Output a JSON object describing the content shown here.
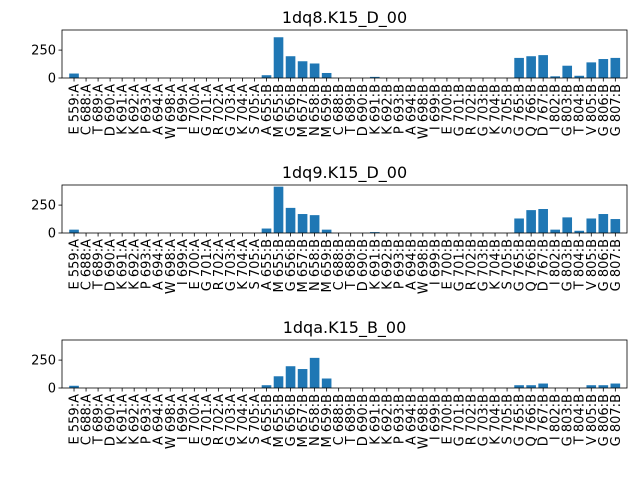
{
  "chart_data": [
    {
      "type": "bar",
      "title": "1dq8.K15_D_00",
      "categories": [
        "E 559:A",
        "C 688:A",
        "T 689:A",
        "D 690:A",
        "K 691:A",
        "K 692:A",
        "P 693:A",
        "A 694:A",
        "W 698:A",
        "I 699:A",
        "E 700:A",
        "G 701:A",
        "R 702:A",
        "G 703:A",
        "K 704:A",
        "S 705:A",
        "A 655:B",
        "M 655:B",
        "G 656:B",
        "M 657:B",
        "N 658:B",
        "M 659:B",
        "C 688:B",
        "T 689:B",
        "D 690:B",
        "K 691:B",
        "K 692:B",
        "P 693:B",
        "A 694:B",
        "W 698:B",
        "I 699:B",
        "E 700:B",
        "G 701:B",
        "R 702:B",
        "G 703:B",
        "K 704:B",
        "S 705:B",
        "G 765:B",
        "Q 766:B",
        "D 767:B",
        "I 802:B",
        "G 803:B",
        "T 804:B",
        "V 805:B",
        "G 806:B",
        "G 807:B"
      ],
      "values": [
        40,
        0,
        0,
        0,
        0,
        0,
        0,
        0,
        0,
        0,
        0,
        0,
        0,
        0,
        0,
        0,
        25,
        365,
        195,
        150,
        130,
        45,
        0,
        0,
        0,
        10,
        0,
        0,
        0,
        0,
        0,
        0,
        0,
        0,
        0,
        0,
        0,
        180,
        195,
        205,
        15,
        110,
        20,
        140,
        170,
        180
      ],
      "yticks": [
        0,
        250
      ],
      "ylim": [
        0,
        430
      ],
      "color": "#1f77b4"
    },
    {
      "type": "bar",
      "title": "1dq9.K15_D_00",
      "categories": [
        "E 559:A",
        "C 688:A",
        "T 689:A",
        "D 690:A",
        "K 691:A",
        "K 692:A",
        "P 693:A",
        "A 694:A",
        "W 698:A",
        "I 699:A",
        "E 700:A",
        "G 701:A",
        "R 702:A",
        "G 703:A",
        "K 704:A",
        "S 705:A",
        "A 655:B",
        "M 655:B",
        "G 656:B",
        "M 657:B",
        "N 658:B",
        "M 659:B",
        "C 688:B",
        "T 689:B",
        "D 690:B",
        "K 691:B",
        "K 692:B",
        "P 693:B",
        "A 694:B",
        "W 698:B",
        "I 699:B",
        "E 700:B",
        "G 701:B",
        "R 702:B",
        "G 703:B",
        "K 704:B",
        "S 705:B",
        "G 765:B",
        "Q 766:B",
        "D 767:B",
        "I 802:B",
        "G 803:B",
        "T 804:B",
        "V 805:B",
        "G 806:B",
        "G 807:B"
      ],
      "values": [
        30,
        0,
        0,
        0,
        0,
        0,
        0,
        0,
        0,
        0,
        0,
        0,
        0,
        0,
        0,
        0,
        40,
        415,
        225,
        170,
        160,
        30,
        0,
        0,
        0,
        8,
        0,
        0,
        0,
        0,
        0,
        0,
        0,
        0,
        0,
        0,
        0,
        130,
        205,
        215,
        30,
        140,
        20,
        130,
        170,
        125
      ],
      "yticks": [
        0,
        250
      ],
      "ylim": [
        0,
        430
      ],
      "color": "#1f77b4"
    },
    {
      "type": "bar",
      "title": "1dqa.K15_B_00",
      "categories": [
        "E 559:A",
        "C 688:A",
        "T 689:A",
        "D 690:A",
        "K 691:A",
        "K 692:A",
        "P 693:A",
        "A 694:A",
        "W 698:A",
        "I 699:A",
        "E 700:A",
        "G 701:A",
        "R 702:A",
        "G 703:A",
        "K 704:A",
        "S 705:A",
        "A 655:B",
        "M 655:B",
        "G 656:B",
        "M 657:B",
        "N 658:B",
        "M 659:B",
        "C 688:B",
        "T 689:B",
        "D 690:B",
        "K 691:B",
        "K 692:B",
        "P 693:B",
        "A 694:B",
        "W 698:B",
        "I 699:B",
        "E 700:B",
        "G 701:B",
        "R 702:B",
        "G 703:B",
        "K 704:B",
        "S 705:B",
        "G 765:B",
        "Q 766:B",
        "D 767:B",
        "I 802:B",
        "G 803:B",
        "T 804:B",
        "V 805:B",
        "G 806:B",
        "G 807:B"
      ],
      "values": [
        20,
        0,
        0,
        0,
        0,
        0,
        0,
        0,
        0,
        0,
        0,
        0,
        0,
        0,
        0,
        0,
        25,
        105,
        195,
        170,
        270,
        85,
        0,
        0,
        0,
        0,
        0,
        0,
        0,
        0,
        0,
        0,
        0,
        0,
        0,
        0,
        0,
        25,
        25,
        40,
        0,
        0,
        0,
        25,
        25,
        40
      ],
      "yticks": [
        0,
        250
      ],
      "ylim": [
        0,
        430
      ],
      "color": "#1f77b4"
    }
  ]
}
